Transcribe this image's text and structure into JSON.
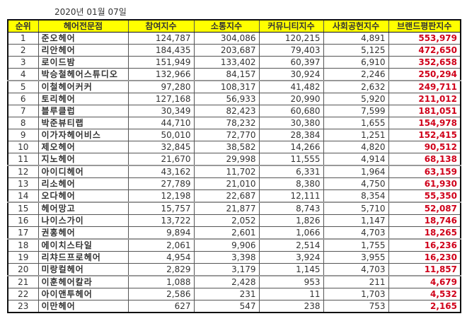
{
  "date": "2020년 01월 07일",
  "colors": {
    "header_bg": "#ffff00",
    "brand_value": "#d0021b"
  },
  "table": {
    "headers": [
      "순위",
      "헤어전문점",
      "참여지수",
      "소통지수",
      "커뮤니티지수",
      "사회공헌지수",
      "브랜드평판지수"
    ],
    "rows": [
      {
        "rank": "1",
        "name": "준오헤어",
        "participation": "124,787",
        "communication": "304,086",
        "community": "120,215",
        "social": "4,891",
        "brand": "553,979"
      },
      {
        "rank": "2",
        "name": "리안헤어",
        "participation": "184,435",
        "communication": "203,687",
        "community": "79,403",
        "social": "5,125",
        "brand": "472,650"
      },
      {
        "rank": "3",
        "name": "로이드밤",
        "participation": "151,949",
        "communication": "133,402",
        "community": "60,397",
        "social": "6,910",
        "brand": "352,658"
      },
      {
        "rank": "4",
        "name": "박승철헤어스튜디오",
        "participation": "132,966",
        "communication": "84,157",
        "community": "30,924",
        "social": "2,246",
        "brand": "250,294"
      },
      {
        "rank": "5",
        "name": "이철헤어커커",
        "participation": "97,280",
        "communication": "108,317",
        "community": "41,482",
        "social": "2,632",
        "brand": "249,711"
      },
      {
        "rank": "6",
        "name": "토리헤어",
        "participation": "127,168",
        "communication": "56,933",
        "community": "20,990",
        "social": "5,920",
        "brand": "211,012"
      },
      {
        "rank": "7",
        "name": "블루클럽",
        "participation": "30,349",
        "communication": "82,423",
        "community": "60,680",
        "social": "7,599",
        "brand": "181,051"
      },
      {
        "rank": "8",
        "name": "박준뷰티랩",
        "participation": "44,710",
        "communication": "78,232",
        "community": "30,380",
        "social": "1,655",
        "brand": "154,978"
      },
      {
        "rank": "9",
        "name": "이가자헤어비스",
        "participation": "50,010",
        "communication": "72,770",
        "community": "28,384",
        "social": "1,251",
        "brand": "152,415"
      },
      {
        "rank": "10",
        "name": "제오헤어",
        "participation": "32,845",
        "communication": "38,582",
        "community": "14,266",
        "social": "4,820",
        "brand": "90,512"
      },
      {
        "rank": "11",
        "name": "지노헤어",
        "participation": "21,670",
        "communication": "29,998",
        "community": "11,555",
        "social": "4,914",
        "brand": "68,138"
      },
      {
        "rank": "12",
        "name": "아이디헤어",
        "participation": "43,162",
        "communication": "11,702",
        "community": "6,331",
        "social": "1,964",
        "brand": "63,159"
      },
      {
        "rank": "13",
        "name": "리소헤어",
        "participation": "27,789",
        "communication": "21,010",
        "community": "8,380",
        "social": "4,750",
        "brand": "61,930"
      },
      {
        "rank": "14",
        "name": "오다헤어",
        "participation": "12,198",
        "communication": "22,687",
        "community": "12,111",
        "social": "8,354",
        "brand": "55,350"
      },
      {
        "rank": "15",
        "name": "헤어망고",
        "participation": "15,757",
        "communication": "21,877",
        "community": "8,743",
        "social": "5,710",
        "brand": "52,087"
      },
      {
        "rank": "16",
        "name": "나이스가이",
        "participation": "13,722",
        "communication": "2,052",
        "community": "1,826",
        "social": "1,147",
        "brand": "18,746"
      },
      {
        "rank": "17",
        "name": "권홍헤어",
        "participation": "9,894",
        "communication": "2,601",
        "community": "1,066",
        "social": "4,703",
        "brand": "18,265"
      },
      {
        "rank": "18",
        "name": "에이치스타일",
        "participation": "2,061",
        "communication": "9,906",
        "community": "2,514",
        "social": "1,755",
        "brand": "16,236"
      },
      {
        "rank": "19",
        "name": "리챠드프로헤어",
        "participation": "4,954",
        "communication": "3,398",
        "community": "3,924",
        "social": "3,955",
        "brand": "16,230"
      },
      {
        "rank": "20",
        "name": "미랑컬헤어",
        "participation": "2,829",
        "communication": "3,179",
        "community": "1,145",
        "social": "4,703",
        "brand": "11,857"
      },
      {
        "rank": "21",
        "name": "이훈헤어칼라",
        "participation": "1,088",
        "communication": "2,428",
        "community": "953",
        "social": "211",
        "brand": "4,679"
      },
      {
        "rank": "22",
        "name": "아이앤투헤어",
        "participation": "2,586",
        "communication": "231",
        "community": "11",
        "social": "1,703",
        "brand": "4,532"
      },
      {
        "rank": "23",
        "name": "이만헤어",
        "participation": "627",
        "communication": "547",
        "community": "238",
        "social": "753",
        "brand": "2,165"
      }
    ]
  }
}
